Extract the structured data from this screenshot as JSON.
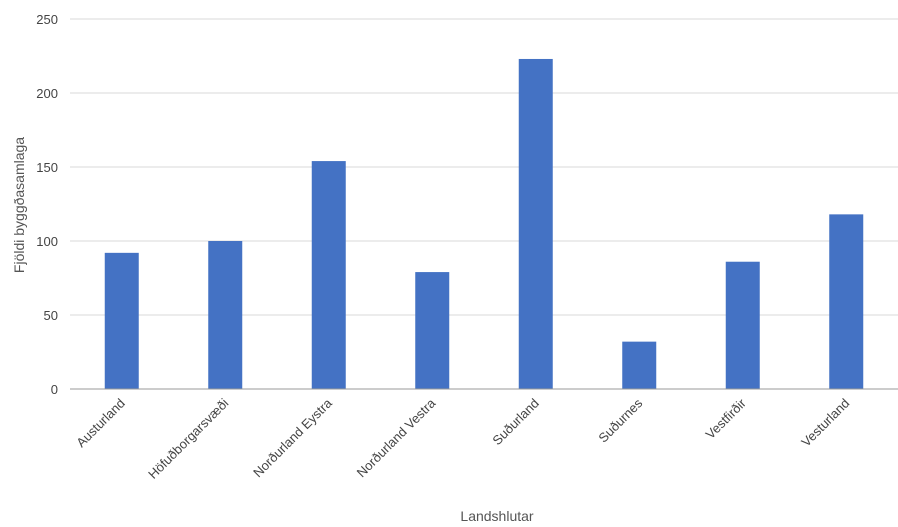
{
  "chart_data": {
    "type": "bar",
    "title": "",
    "xlabel": "Landshlutar",
    "ylabel": "Fjöldi byggðasamlaga",
    "categories": [
      "Austurland",
      "Höfuðborgarsvæði",
      "Norðurland Eystra",
      "Norðurland Vestra",
      "Suðurland",
      "Suðurnes",
      "Vestfirðir",
      "Vesturland"
    ],
    "values": [
      92,
      100,
      154,
      79,
      223,
      32,
      86,
      118
    ],
    "ylim": [
      0,
      250
    ],
    "yticks": [
      "0",
      "50",
      "100",
      "150",
      "200",
      "250"
    ],
    "grid": true,
    "legend": "none",
    "colors": {
      "bar": "#4472c4",
      "grid": "#d9d9d9",
      "axis": "#999999"
    }
  }
}
